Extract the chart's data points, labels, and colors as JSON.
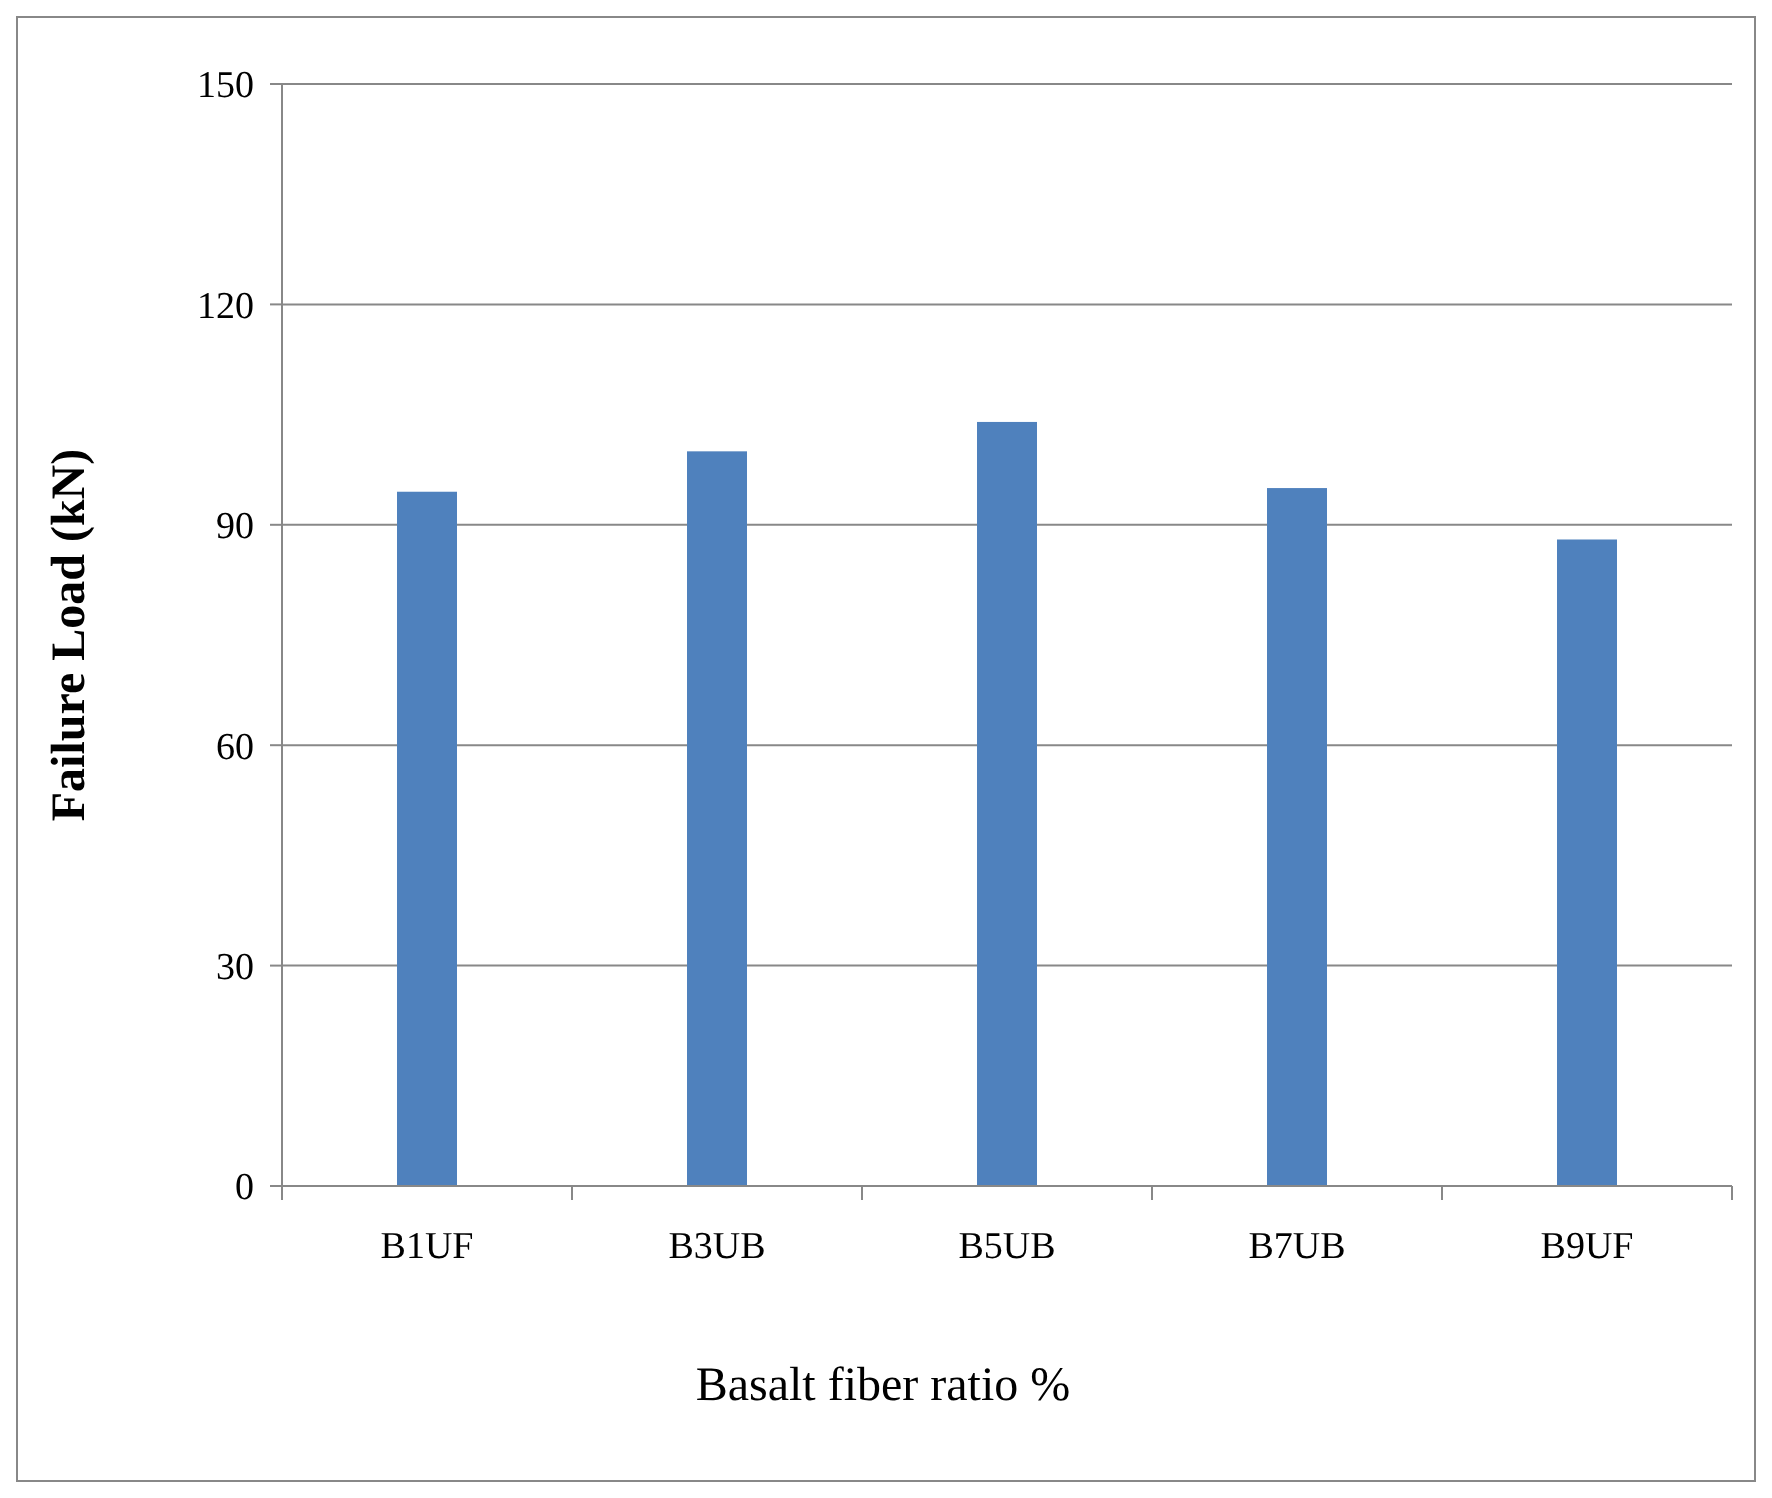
{
  "chart_data": {
    "type": "bar",
    "xlabel": "Basalt fiber ratio %",
    "ylabel": "Failure Load (kN)",
    "categories": [
      "B1UF",
      "B3UB",
      "B5UB",
      "B7UB",
      "B9UF"
    ],
    "values": [
      94.5,
      100,
      104,
      95,
      88
    ],
    "color": "#4f81bd",
    "ylim": [
      0,
      150
    ],
    "yticks": [
      0,
      30,
      60,
      90,
      120,
      150
    ],
    "grid": "y"
  }
}
